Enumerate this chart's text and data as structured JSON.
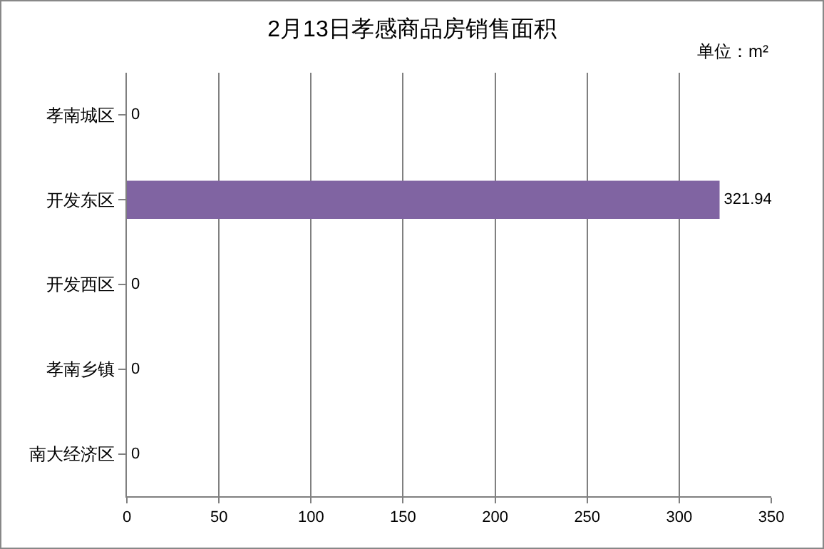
{
  "chart_data": {
    "type": "bar",
    "orientation": "horizontal",
    "title": "2月13日孝感商品房销售面积",
    "categories": [
      "孝南城区",
      "开发东区",
      "开发西区",
      "孝南乡镇",
      "南大经济区"
    ],
    "values": [
      0,
      321.94,
      0,
      0,
      0
    ],
    "color": "#8064a2",
    "xlim": [
      0,
      350
    ],
    "xticks": [
      0,
      50,
      100,
      150,
      200,
      250,
      300,
      350
    ],
    "grid": "x",
    "data_labels": true,
    "annotations": [
      "单位：m²"
    ]
  }
}
